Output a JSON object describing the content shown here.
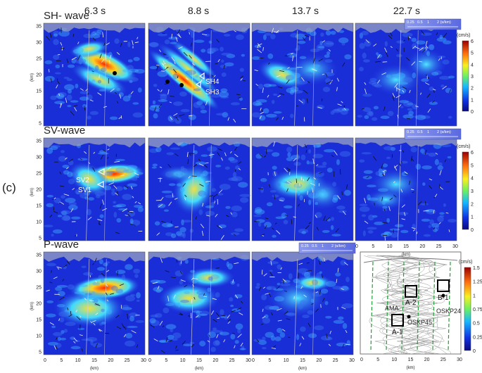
{
  "figure": {
    "panel_label": "(c)",
    "times": [
      "6.3 s",
      "8.8 s",
      "13.7 s",
      "22.7 s"
    ],
    "rows": [
      {
        "title": "SH- wave"
      },
      {
        "title": "SV-wave"
      },
      {
        "title": "P-wave"
      }
    ],
    "yaxis": {
      "unit": "(km)",
      "ticks": [
        "35",
        "30",
        "25",
        "20",
        "15",
        "10",
        "5"
      ]
    },
    "xaxis": {
      "unit": "(km)",
      "ticks": [
        "0",
        "5",
        "10",
        "15",
        "20",
        "25",
        "30"
      ]
    },
    "slowness_legend": {
      "labels": [
        "0.25",
        "0.5",
        "1",
        "2 (s/km)"
      ]
    },
    "colorbars": [
      {
        "unit": "(cm/s)",
        "ticks": [
          "6",
          "5",
          "4",
          "3",
          "2",
          "1",
          "0"
        ]
      },
      {
        "unit": "(cm/s)",
        "ticks": [
          "6",
          "5",
          "4",
          "3",
          "2",
          "1",
          "0"
        ]
      },
      {
        "unit": "(cm/s)",
        "ticks": [
          "1.5",
          "1.25",
          "1",
          "0.75",
          "0.5",
          "0.25",
          "0"
        ]
      }
    ],
    "annotations": {
      "sh4": "SH4",
      "sh3": "SH3",
      "sv2": "SV2",
      "sv1": "SV1"
    },
    "map": {
      "labels": [
        "A-2",
        "B-1",
        "AMA",
        "OSKP24",
        "OSKP45",
        "A-1"
      ]
    },
    "colors": {
      "background": "#1a2ed8",
      "accent_red": "#e01010",
      "legend_box": "#6f7ee6"
    }
  }
}
